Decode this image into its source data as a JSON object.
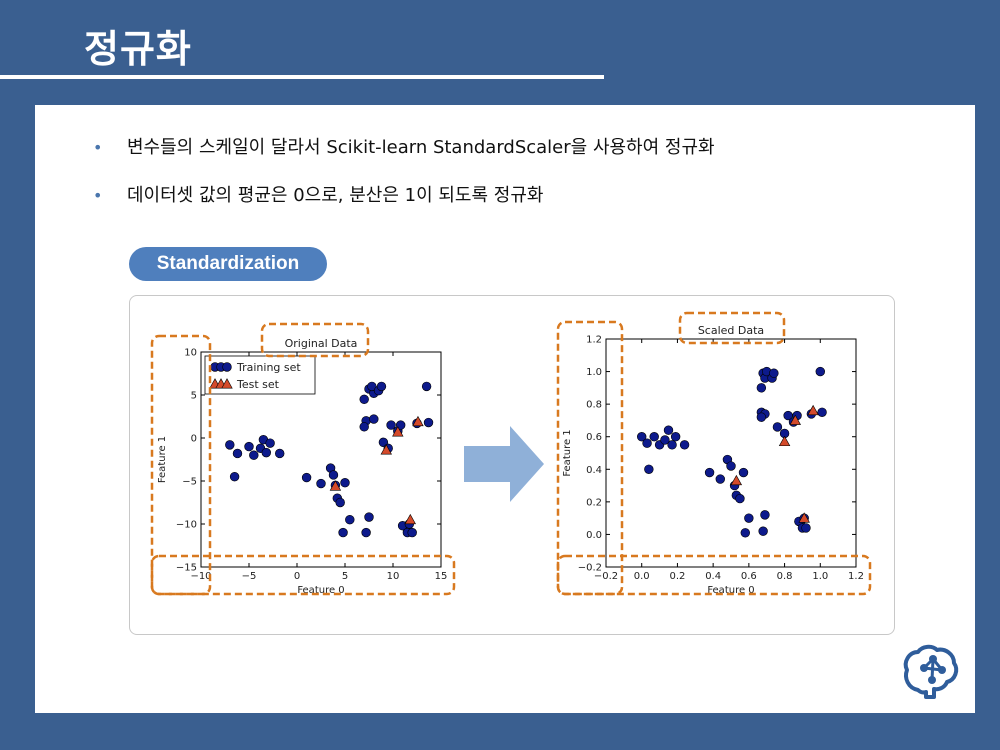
{
  "slide": {
    "title": "정규화",
    "bullets": [
      "변수들의 스케일이 달라서 Scikit-learn StandardScaler을 사용하여 정규화",
      "데이터셋 값의 평균은 0으로, 분산은 1이 되도록 정규화"
    ],
    "badge": "Standardization",
    "bullet_symbol": "•"
  },
  "colors": {
    "background": "#3a5f90",
    "badge": "#4f7fbd",
    "training_point": "#0d1a8c",
    "test_point": "#d44a2a",
    "highlight_dash": "#d8791f",
    "arrow": "#8fb0d8"
  },
  "icons": {
    "logo": "brain-network-icon",
    "arrow": "right-arrow-icon"
  },
  "chart_data": [
    {
      "type": "scatter",
      "title": "Original Data",
      "xlabel": "Feature 0",
      "ylabel": "Feature 1",
      "xlim": [
        -10,
        15
      ],
      "ylim": [
        -15,
        10
      ],
      "xticks": [
        -10,
        -5,
        0,
        5,
        10,
        15
      ],
      "yticks": [
        -15,
        -10,
        -5,
        0,
        5,
        10
      ],
      "xtick_labels": [
        "−10",
        "−5",
        "0",
        "5",
        "10",
        "15"
      ],
      "ytick_labels": [
        "−15",
        "−10",
        "−5",
        "0",
        "5",
        "10"
      ],
      "legend": {
        "position": "top-left",
        "entries": [
          "Training set",
          "Test set"
        ]
      },
      "series": [
        {
          "name": "Training set",
          "marker": "circle",
          "x": [
            -7,
            -6.2,
            -5,
            -4.5,
            -3.8,
            -3.5,
            -3.2,
            -2.8,
            -1.8,
            -6.5,
            1,
            2.5,
            3.5,
            3.8,
            4,
            4.2,
            4.5,
            5,
            7.5,
            7,
            8,
            7.8,
            8.5,
            8.8,
            7.2,
            8,
            7,
            9,
            9.5,
            9.8,
            10.5,
            10.8,
            13.5,
            13.7,
            12.5,
            11.5,
            11,
            11.5,
            12,
            11.7,
            7.5,
            7.2,
            5.5,
            4.8
          ],
          "y": [
            -0.8,
            -1.8,
            -1,
            -2,
            -1.2,
            -0.2,
            -1.7,
            -0.6,
            -1.8,
            -4.5,
            -4.6,
            -5.3,
            -3.5,
            -4.3,
            -5.5,
            -7,
            -7.5,
            -5.2,
            5.7,
            4.5,
            5.2,
            6,
            5.5,
            6,
            2,
            2.2,
            1.3,
            -0.5,
            -1.2,
            1.5,
            0.8,
            1.5,
            6,
            1.8,
            1.7,
            -10.5,
            -10.2,
            -11,
            -11,
            -10,
            -9.2,
            -11,
            -9.5,
            -11
          ],
          "color": "#0d1a8c"
        },
        {
          "name": "Test set",
          "marker": "triangle",
          "x": [
            4,
            9.3,
            10.5,
            12.6,
            11.8
          ],
          "y": [
            -5.6,
            -1.4,
            0.7,
            1.9,
            -9.5
          ],
          "color": "#d44a2a"
        }
      ]
    },
    {
      "type": "scatter",
      "title": "Scaled Data",
      "xlabel": "Feature 0",
      "ylabel": "Feature 1",
      "xlim": [
        -0.2,
        1.2
      ],
      "ylim": [
        -0.2,
        1.2
      ],
      "xticks": [
        -0.2,
        0.0,
        0.2,
        0.4,
        0.6,
        0.8,
        1.0,
        1.2
      ],
      "yticks": [
        -0.2,
        0.0,
        0.2,
        0.4,
        0.6,
        0.8,
        1.0,
        1.2
      ],
      "xtick_labels": [
        "−0.2",
        "0.0",
        "0.2",
        "0.4",
        "0.6",
        "0.8",
        "1.0",
        "1.2"
      ],
      "ytick_labels": [
        "−0.2",
        "0.0",
        "0.2",
        "0.4",
        "0.6",
        "0.8",
        "1.0",
        "1.2"
      ],
      "series": [
        {
          "name": "Training set",
          "marker": "circle",
          "x": [
            0,
            0.03,
            0.07,
            0.1,
            0.13,
            0.15,
            0.17,
            0.19,
            0.24,
            0.04,
            0.38,
            0.44,
            0.48,
            0.5,
            0.52,
            0.53,
            0.55,
            0.57,
            0.68,
            0.67,
            0.69,
            0.7,
            0.73,
            0.74,
            0.67,
            0.69,
            0.67,
            0.76,
            0.8,
            0.82,
            0.85,
            0.87,
            1,
            1.01,
            0.95,
            0.89,
            0.88,
            0.9,
            0.92,
            0.91,
            0.69,
            0.68,
            0.6,
            0.58
          ],
          "y": [
            0.6,
            0.56,
            0.6,
            0.55,
            0.58,
            0.64,
            0.55,
            0.6,
            0.55,
            0.4,
            0.38,
            0.34,
            0.46,
            0.42,
            0.3,
            0.24,
            0.22,
            0.38,
            0.99,
            0.9,
            0.96,
            1,
            0.96,
            0.99,
            0.75,
            0.74,
            0.72,
            0.66,
            0.62,
            0.73,
            0.69,
            0.73,
            1,
            0.75,
            0.74,
            0.08,
            0.08,
            0.04,
            0.04,
            0.1,
            0.12,
            0.02,
            0.1,
            0.01
          ],
          "color": "#0d1a8c"
        },
        {
          "name": "Test set",
          "marker": "triangle",
          "x": [
            0.53,
            0.8,
            0.86,
            0.96,
            0.91
          ],
          "y": [
            0.33,
            0.57,
            0.7,
            0.76,
            0.1
          ],
          "color": "#d44a2a"
        }
      ]
    }
  ]
}
